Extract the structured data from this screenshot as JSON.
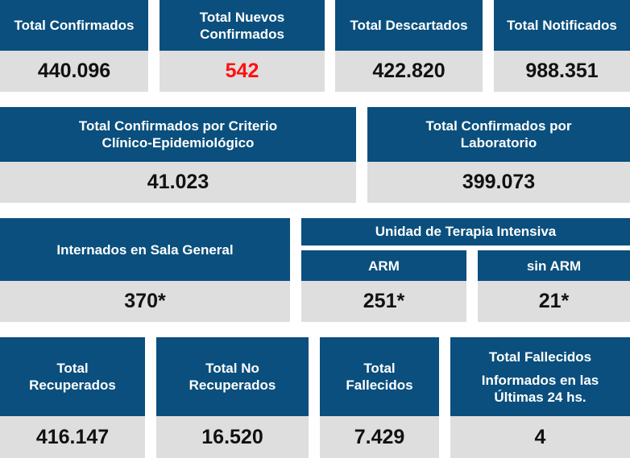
{
  "row1": [
    {
      "label": "Total Confirmados",
      "value": "440.096"
    },
    {
      "label": "Total Nuevos Confirmados",
      "value": "542"
    },
    {
      "label": "Total Descartados",
      "value": "422.820"
    },
    {
      "label": "Total Notificados",
      "value": "988.351"
    }
  ],
  "row2": [
    {
      "label": "Total Confirmados por Criterio Clínico-Epidemiológico",
      "value": "41.023"
    },
    {
      "label": "Total Confirmados por Laboratorio",
      "value": "399.073"
    }
  ],
  "row3": {
    "general": {
      "label": "Internados en Sala General",
      "value": "370*"
    },
    "uti_title": "Unidad de Terapia Intensiva",
    "arm": {
      "label": "ARM",
      "value": "251*"
    },
    "sin_arm": {
      "label": "sin ARM",
      "value": "21*"
    }
  },
  "row4": [
    {
      "label": "Total Recuperados",
      "value": "416.147"
    },
    {
      "label": "Total No Recuperados",
      "value": "16.520"
    },
    {
      "label": "Total Fallecidos",
      "value": "7.429"
    },
    {
      "label": "Total Fallecidos",
      "sublabel": "Informados en las Últimas 24 hs.",
      "value": "4"
    }
  ],
  "colors": {
    "header": "#0a4f7d",
    "value_bg": "#dedede",
    "highlight": "#ff1010"
  }
}
